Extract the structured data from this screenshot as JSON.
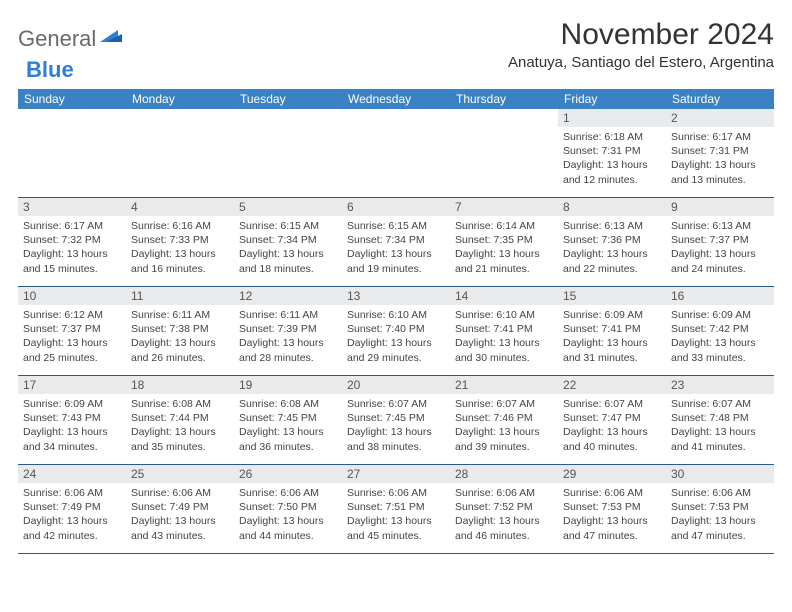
{
  "logo": {
    "word1": "General",
    "word2": "Blue"
  },
  "title": "November 2024",
  "location": "Anatuya, Santiago del Estero, Argentina",
  "colors": {
    "header_bg": "#3b82c4",
    "header_text": "#ffffff",
    "daynum_bg": "#e9eaec",
    "daynum_text": "#555555",
    "body_text": "#444444",
    "rule": "#2a5a8a",
    "logo_grey": "#6a6a6a",
    "logo_blue": "#2f7ed8"
  },
  "weekdays": [
    "Sunday",
    "Monday",
    "Tuesday",
    "Wednesday",
    "Thursday",
    "Friday",
    "Saturday"
  ],
  "weeks": [
    [
      {
        "n": "",
        "sr": "",
        "ss": "",
        "d1": "",
        "d2": ""
      },
      {
        "n": "",
        "sr": "",
        "ss": "",
        "d1": "",
        "d2": ""
      },
      {
        "n": "",
        "sr": "",
        "ss": "",
        "d1": "",
        "d2": ""
      },
      {
        "n": "",
        "sr": "",
        "ss": "",
        "d1": "",
        "d2": ""
      },
      {
        "n": "",
        "sr": "",
        "ss": "",
        "d1": "",
        "d2": ""
      },
      {
        "n": "1",
        "sr": "Sunrise: 6:18 AM",
        "ss": "Sunset: 7:31 PM",
        "d1": "Daylight: 13 hours",
        "d2": "and 12 minutes."
      },
      {
        "n": "2",
        "sr": "Sunrise: 6:17 AM",
        "ss": "Sunset: 7:31 PM",
        "d1": "Daylight: 13 hours",
        "d2": "and 13 minutes."
      }
    ],
    [
      {
        "n": "3",
        "sr": "Sunrise: 6:17 AM",
        "ss": "Sunset: 7:32 PM",
        "d1": "Daylight: 13 hours",
        "d2": "and 15 minutes."
      },
      {
        "n": "4",
        "sr": "Sunrise: 6:16 AM",
        "ss": "Sunset: 7:33 PM",
        "d1": "Daylight: 13 hours",
        "d2": "and 16 minutes."
      },
      {
        "n": "5",
        "sr": "Sunrise: 6:15 AM",
        "ss": "Sunset: 7:34 PM",
        "d1": "Daylight: 13 hours",
        "d2": "and 18 minutes."
      },
      {
        "n": "6",
        "sr": "Sunrise: 6:15 AM",
        "ss": "Sunset: 7:34 PM",
        "d1": "Daylight: 13 hours",
        "d2": "and 19 minutes."
      },
      {
        "n": "7",
        "sr": "Sunrise: 6:14 AM",
        "ss": "Sunset: 7:35 PM",
        "d1": "Daylight: 13 hours",
        "d2": "and 21 minutes."
      },
      {
        "n": "8",
        "sr": "Sunrise: 6:13 AM",
        "ss": "Sunset: 7:36 PM",
        "d1": "Daylight: 13 hours",
        "d2": "and 22 minutes."
      },
      {
        "n": "9",
        "sr": "Sunrise: 6:13 AM",
        "ss": "Sunset: 7:37 PM",
        "d1": "Daylight: 13 hours",
        "d2": "and 24 minutes."
      }
    ],
    [
      {
        "n": "10",
        "sr": "Sunrise: 6:12 AM",
        "ss": "Sunset: 7:37 PM",
        "d1": "Daylight: 13 hours",
        "d2": "and 25 minutes."
      },
      {
        "n": "11",
        "sr": "Sunrise: 6:11 AM",
        "ss": "Sunset: 7:38 PM",
        "d1": "Daylight: 13 hours",
        "d2": "and 26 minutes."
      },
      {
        "n": "12",
        "sr": "Sunrise: 6:11 AM",
        "ss": "Sunset: 7:39 PM",
        "d1": "Daylight: 13 hours",
        "d2": "and 28 minutes."
      },
      {
        "n": "13",
        "sr": "Sunrise: 6:10 AM",
        "ss": "Sunset: 7:40 PM",
        "d1": "Daylight: 13 hours",
        "d2": "and 29 minutes."
      },
      {
        "n": "14",
        "sr": "Sunrise: 6:10 AM",
        "ss": "Sunset: 7:41 PM",
        "d1": "Daylight: 13 hours",
        "d2": "and 30 minutes."
      },
      {
        "n": "15",
        "sr": "Sunrise: 6:09 AM",
        "ss": "Sunset: 7:41 PM",
        "d1": "Daylight: 13 hours",
        "d2": "and 31 minutes."
      },
      {
        "n": "16",
        "sr": "Sunrise: 6:09 AM",
        "ss": "Sunset: 7:42 PM",
        "d1": "Daylight: 13 hours",
        "d2": "and 33 minutes."
      }
    ],
    [
      {
        "n": "17",
        "sr": "Sunrise: 6:09 AM",
        "ss": "Sunset: 7:43 PM",
        "d1": "Daylight: 13 hours",
        "d2": "and 34 minutes."
      },
      {
        "n": "18",
        "sr": "Sunrise: 6:08 AM",
        "ss": "Sunset: 7:44 PM",
        "d1": "Daylight: 13 hours",
        "d2": "and 35 minutes."
      },
      {
        "n": "19",
        "sr": "Sunrise: 6:08 AM",
        "ss": "Sunset: 7:45 PM",
        "d1": "Daylight: 13 hours",
        "d2": "and 36 minutes."
      },
      {
        "n": "20",
        "sr": "Sunrise: 6:07 AM",
        "ss": "Sunset: 7:45 PM",
        "d1": "Daylight: 13 hours",
        "d2": "and 38 minutes."
      },
      {
        "n": "21",
        "sr": "Sunrise: 6:07 AM",
        "ss": "Sunset: 7:46 PM",
        "d1": "Daylight: 13 hours",
        "d2": "and 39 minutes."
      },
      {
        "n": "22",
        "sr": "Sunrise: 6:07 AM",
        "ss": "Sunset: 7:47 PM",
        "d1": "Daylight: 13 hours",
        "d2": "and 40 minutes."
      },
      {
        "n": "23",
        "sr": "Sunrise: 6:07 AM",
        "ss": "Sunset: 7:48 PM",
        "d1": "Daylight: 13 hours",
        "d2": "and 41 minutes."
      }
    ],
    [
      {
        "n": "24",
        "sr": "Sunrise: 6:06 AM",
        "ss": "Sunset: 7:49 PM",
        "d1": "Daylight: 13 hours",
        "d2": "and 42 minutes."
      },
      {
        "n": "25",
        "sr": "Sunrise: 6:06 AM",
        "ss": "Sunset: 7:49 PM",
        "d1": "Daylight: 13 hours",
        "d2": "and 43 minutes."
      },
      {
        "n": "26",
        "sr": "Sunrise: 6:06 AM",
        "ss": "Sunset: 7:50 PM",
        "d1": "Daylight: 13 hours",
        "d2": "and 44 minutes."
      },
      {
        "n": "27",
        "sr": "Sunrise: 6:06 AM",
        "ss": "Sunset: 7:51 PM",
        "d1": "Daylight: 13 hours",
        "d2": "and 45 minutes."
      },
      {
        "n": "28",
        "sr": "Sunrise: 6:06 AM",
        "ss": "Sunset: 7:52 PM",
        "d1": "Daylight: 13 hours",
        "d2": "and 46 minutes."
      },
      {
        "n": "29",
        "sr": "Sunrise: 6:06 AM",
        "ss": "Sunset: 7:53 PM",
        "d1": "Daylight: 13 hours",
        "d2": "and 47 minutes."
      },
      {
        "n": "30",
        "sr": "Sunrise: 6:06 AM",
        "ss": "Sunset: 7:53 PM",
        "d1": "Daylight: 13 hours",
        "d2": "and 47 minutes."
      }
    ]
  ]
}
